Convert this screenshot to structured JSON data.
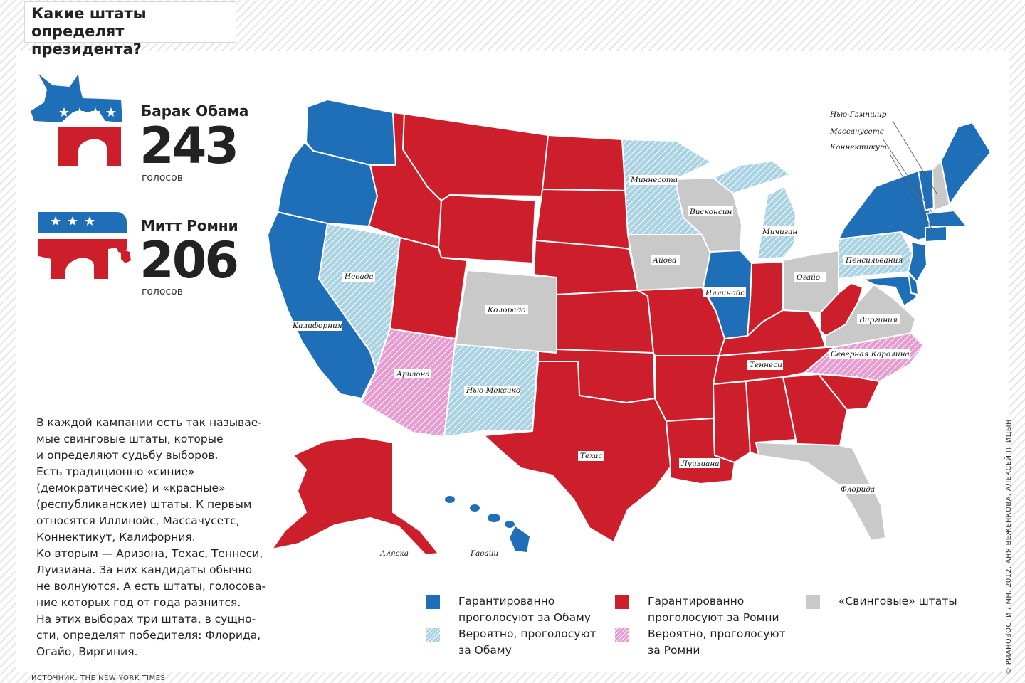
{
  "title_lines": [
    "Какие штаты",
    "определят президента?"
  ],
  "candidates": [
    {
      "name": "Барак Обама",
      "votes": "243",
      "unit": "голосов"
    },
    {
      "name": "Митт Ромни",
      "votes": "206",
      "unit": "голосов"
    }
  ],
  "description": [
    "В каждой кампании есть так называе-",
    "мые свинговые штаты, которые",
    "и определяют судьбу выборов.",
    "Есть традиционно «синие»",
    "(демократические) и «красные»",
    "(республиканские) штаты. К первым",
    "относятся Иллинойс, Массачусетс,",
    "Коннектикут, Калифорния.",
    "Ко вторым — Аризона, Техас, Теннеси,",
    "Луизиана. За них кандидаты обычно",
    "не волнуются. А есть штаты, голосова-",
    "ние которых год от года разнится.",
    "На этих выборах три штата, в сущно-",
    "сти, определят победителя: Флорида,",
    "Огайо, Виргиния."
  ],
  "legend": [
    {
      "key": "obama-solid",
      "lines": [
        "Гарантированно",
        "проголосуют за Обаму"
      ]
    },
    {
      "key": "romney-solid",
      "lines": [
        "Гарантированно",
        "проголосуют за Ромни"
      ]
    },
    {
      "key": "swing",
      "lines": [
        "«Свинговые» штаты"
      ]
    },
    {
      "key": "obama-lean",
      "lines": [
        "Вероятно, проголосуют",
        "за Обаму"
      ]
    },
    {
      "key": "romney-lean",
      "lines": [
        "Вероятно, проголосуют",
        "за Ромни"
      ]
    }
  ],
  "colors": {
    "obama_solid": "#1e6fb8",
    "obama_lean": "#a9d2e4",
    "romney_solid": "#cc1f2b",
    "romney_lean": "#e79bd0",
    "swing": "#c9c9c9"
  },
  "map": {
    "labels": {
      "new_hampshire": "Нью-Гэмпшир",
      "massachusetts": "Массачусетс",
      "connecticut": "Коннектикут",
      "minnesota": "Миннесота",
      "wisconsin": "Висконсин",
      "michigan": "Мичиган",
      "pennsylvania": "Пенсильвания",
      "nevada": "Невада",
      "iowa": "Айова",
      "ohio": "Огайо",
      "illinois": "Иллинойс",
      "colorado": "Колорадо",
      "virginia": "Виргиния",
      "california": "Калифорния",
      "north_carolina": "Северная Каролина",
      "tennessee": "Теннеси",
      "arizona": "Аризона",
      "new_mexico": "Нью-Мексико",
      "texas": "Техас",
      "louisiana": "Луизиана",
      "florida": "Флорида",
      "alaska": "Аляска",
      "hawaii": "Гавайи"
    }
  },
  "source": "ИСТОЧНИК: THE NEW YORK TIMES",
  "credit": "© РИАНОВОСТИ / МН, 2012. АНЯ ВЕЖЕНКОВА, АЛЕКСЕЙ ПТИЦЫН"
}
